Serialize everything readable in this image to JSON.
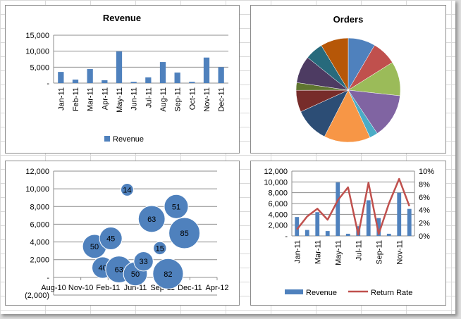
{
  "colors": {
    "revenue_bar": "#4f81bd",
    "return_line": "#c0504d",
    "bubble": "#4f81bd",
    "pie": [
      "#4f81bd",
      "#c0504d",
      "#9bbb59",
      "#8064a2",
      "#4bacc6",
      "#f79646",
      "#2c4d75",
      "#772c2a",
      "#5f7530",
      "#4d3b62",
      "#276a7c",
      "#b65708"
    ]
  },
  "chart_data": [
    {
      "type": "bar",
      "title": "Revenue",
      "categories": [
        "Jan-11",
        "Feb-11",
        "Mar-11",
        "Apr-11",
        "May-11",
        "Jun-11",
        "Jul-11",
        "Aug-11",
        "Sep-11",
        "Oct-11",
        "Nov-11",
        "Dec-11"
      ],
      "series": [
        {
          "name": "Revenue",
          "values": [
            3500,
            1100,
            4400,
            900,
            9900,
            400,
            1800,
            6600,
            3300,
            400,
            8000,
            5000
          ]
        }
      ],
      "ylim": [
        0,
        15000
      ],
      "yticks": [
        0,
        5000,
        10000,
        15000
      ],
      "ytick_labels": [
        "-",
        "5,000",
        "10,000",
        "15,000"
      ],
      "grid": true,
      "legend": "bottom"
    },
    {
      "type": "pie",
      "title": "Orders",
      "values": [
        50,
        45,
        63,
        82,
        15,
        85,
        63,
        40,
        14,
        50,
        33,
        51
      ]
    },
    {
      "type": "scatter",
      "bubbles": true,
      "x": [
        "2011-01",
        "2011-02",
        "2011-03",
        "2011-04",
        "2011-05",
        "2011-06",
        "2011-07",
        "2011-08",
        "2011-09",
        "2011-10",
        "2011-11",
        "2011-12"
      ],
      "y": [
        3500,
        1100,
        4400,
        900,
        9900,
        400,
        1800,
        6600,
        3300,
        400,
        8000,
        5000
      ],
      "sizes": [
        50,
        40,
        45,
        63,
        14,
        50,
        33,
        63,
        15,
        82,
        51,
        85
      ],
      "xticks": [
        "Aug-10",
        "Nov-10",
        "Feb-11",
        "Jun-11",
        "Sep-11",
        "Dec-11",
        "Apr-12"
      ],
      "ylim": [
        -2000,
        12000
      ],
      "yticks": [
        -2000,
        0,
        2000,
        4000,
        6000,
        8000,
        10000,
        12000
      ],
      "ytick_labels": [
        "(2,000)",
        "-",
        "2,000",
        "4,000",
        "6,000",
        "8,000",
        "10,000",
        "12,000"
      ],
      "grid": true
    },
    {
      "type": "bar",
      "combo": true,
      "categories": [
        "Jan-11",
        "Feb-11",
        "Mar-11",
        "Apr-11",
        "May-11",
        "Jun-11",
        "Jul-11",
        "Aug-11",
        "Sep-11",
        "Oct-11",
        "Nov-11",
        "Dec-11"
      ],
      "xtick_labels": [
        "Jan-11",
        "Mar-11",
        "May-11",
        "Jul-11",
        "Sep-11",
        "Nov-11"
      ],
      "series": [
        {
          "name": "Revenue",
          "type": "bar",
          "values": [
            3500,
            1100,
            4400,
            900,
            9900,
            400,
            1800,
            6600,
            3300,
            400,
            8000,
            5000
          ]
        },
        {
          "name": "Return Rate",
          "type": "line",
          "axis": "secondary",
          "values": [
            1.0,
            3.0,
            4.2,
            2.5,
            5.5,
            7.5,
            0.2,
            8.2,
            0.3,
            5.0,
            8.8,
            4.6
          ]
        }
      ],
      "ylim": [
        0,
        12000
      ],
      "yticks": [
        0,
        2000,
        4000,
        6000,
        8000,
        10000,
        12000
      ],
      "ytick_labels": [
        "-",
        "2,000",
        "4,000",
        "6,000",
        "8,000",
        "10,000",
        "12,000"
      ],
      "y2lim": [
        0,
        10
      ],
      "y2ticks": [
        0,
        2,
        4,
        6,
        8,
        10
      ],
      "y2tick_labels": [
        "0%",
        "2%",
        "4%",
        "6%",
        "8%",
        "10%"
      ],
      "grid": true,
      "legend": "bottom"
    }
  ]
}
